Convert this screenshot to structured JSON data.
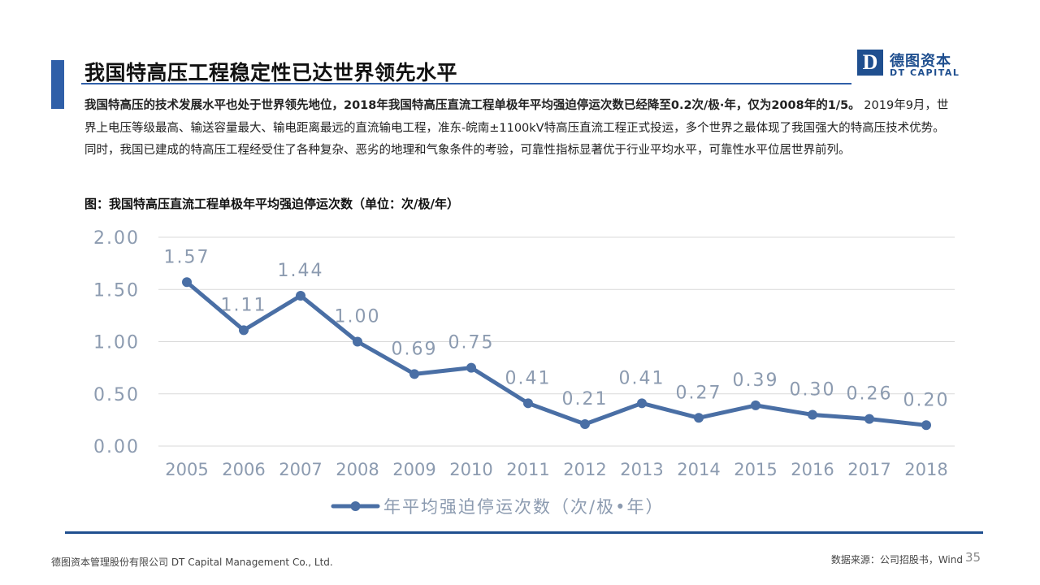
{
  "slide": {
    "title": "我国特高压工程稳定性已达世界领先水平",
    "logo": {
      "mark": "D",
      "cn": "德图资本",
      "en": "DT CAPITAL"
    },
    "paragraph_lead": "我国特高压的技术发展水平也处于世界领先地位，2018年我国特高压直流工程单极年平均强迫停运次数已经降至0.2次/极·年，仅为2008年的1/5。",
    "paragraph_body": " 2019年9月，世界上电压等级最高、输送容量最大、输电距离最远的直流输电工程，准东-皖南±1100kV特高压直流工程正式投运，多个世界之最体现了我国强大的特高压技术优势。同时，我国已建成的特高压工程经受住了各种复杂、恶劣的地理和气象条件的考验，可靠性指标显著优于行业平均水平，可靠性水平位居世界前列。",
    "caption": "图：我国特高压直流工程单极年平均强迫停运次数（单位：次/极/年）",
    "footer_left": "德图资本管理股份有限公司  DT Capital Management  Co., Ltd.",
    "footer_right": "数据来源：公司招股书，Wind",
    "page_number": "35"
  },
  "chart_data": {
    "type": "line",
    "title": "",
    "xlabel": "",
    "ylabel": "",
    "categories": [
      "2005",
      "2006",
      "2007",
      "2008",
      "2009",
      "2010",
      "2011",
      "2012",
      "2013",
      "2014",
      "2015",
      "2016",
      "2017",
      "2018"
    ],
    "series": [
      {
        "name": "年平均强迫停运次数（次/极•年）",
        "values": [
          1.57,
          1.11,
          1.44,
          1.0,
          0.69,
          0.75,
          0.41,
          0.21,
          0.41,
          0.27,
          0.39,
          0.3,
          0.26,
          0.2
        ],
        "data_labels": [
          "1.57",
          "1.11",
          "1.44",
          "1.00",
          "0.69",
          "0.75",
          "0.41",
          "0.21",
          "0.41",
          "0.27",
          "0.39",
          "0.30",
          "0.26",
          "0.20"
        ],
        "color": "#4a6fa5"
      }
    ],
    "y_ticks": [
      "0.00",
      "0.50",
      "1.00",
      "1.50",
      "2.00"
    ],
    "ylim": [
      0,
      2
    ],
    "grid": true,
    "legend_position": "bottom",
    "colors": {
      "line": "#4a6fa5",
      "grid": "#d9d9d9",
      "text": "#8c9bb0"
    }
  }
}
